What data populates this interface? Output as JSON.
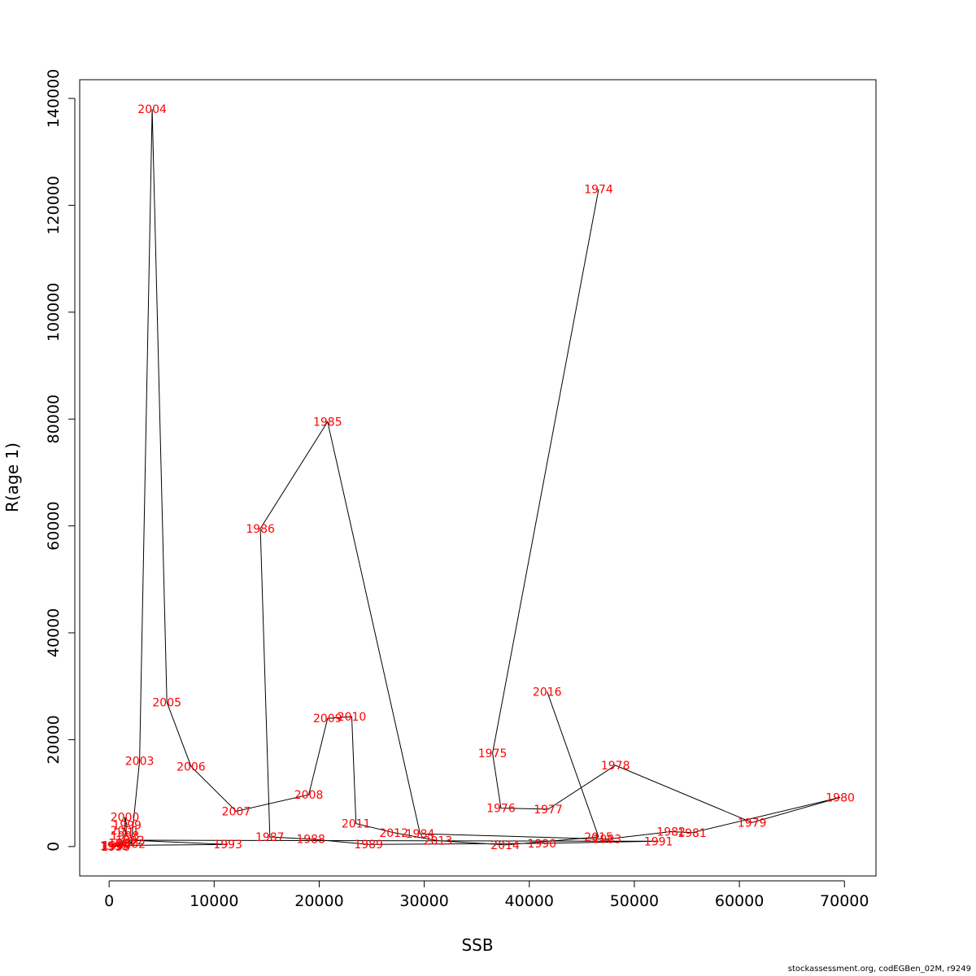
{
  "credit": "stockassessment.org, codEGBen_02M, r9249",
  "chart_data": {
    "type": "line",
    "title": "",
    "xlabel": "SSB",
    "ylabel": "R(age 1)",
    "xlim": [
      -2800,
      73000
    ],
    "ylim": [
      -5500,
      143500
    ],
    "xticks": [
      0,
      10000,
      20000,
      30000,
      40000,
      50000,
      60000,
      70000
    ],
    "yticks": [
      0,
      20000,
      40000,
      60000,
      80000,
      100000,
      120000,
      140000
    ],
    "xtick_labels": [
      "0",
      "10000",
      "20000",
      "30000",
      "40000",
      "50000",
      "60000",
      "70000"
    ],
    "ytick_labels": [
      "0",
      "20000",
      "40000",
      "60000",
      "80000",
      "100000",
      "120000",
      "140000"
    ],
    "line_color": "#000000",
    "label_color": "#ff0000",
    "grid": false,
    "points": [
      {
        "year": "1974",
        "x": 46600,
        "y": 123000
      },
      {
        "year": "1975",
        "x": 36500,
        "y": 17500
      },
      {
        "year": "1976",
        "x": 37300,
        "y": 7200
      },
      {
        "year": "1977",
        "x": 41800,
        "y": 7000
      },
      {
        "year": "1978",
        "x": 48200,
        "y": 15200
      },
      {
        "year": "1979",
        "x": 61200,
        "y": 4500
      },
      {
        "year": "1980",
        "x": 69600,
        "y": 9200
      },
      {
        "year": "1981",
        "x": 55500,
        "y": 2600
      },
      {
        "year": "1982",
        "x": 53500,
        "y": 2800
      },
      {
        "year": "1983",
        "x": 47400,
        "y": 1400
      },
      {
        "year": "1984",
        "x": 29600,
        "y": 2400
      },
      {
        "year": "1985",
        "x": 20800,
        "y": 79500
      },
      {
        "year": "1986",
        "x": 14400,
        "y": 59500
      },
      {
        "year": "1987",
        "x": 15300,
        "y": 1800
      },
      {
        "year": "1988",
        "x": 19200,
        "y": 1400
      },
      {
        "year": "1989",
        "x": 24700,
        "y": 400
      },
      {
        "year": "1990",
        "x": 41200,
        "y": 600
      },
      {
        "year": "1991",
        "x": 52300,
        "y": 1000
      },
      {
        "year": "1992",
        "x": 2000,
        "y": 1200
      },
      {
        "year": "1993",
        "x": 11300,
        "y": 400
      },
      {
        "year": "1994",
        "x": 700,
        "y": 200
      },
      {
        "year": "1995",
        "x": 500,
        "y": 100
      },
      {
        "year": "1996",
        "x": 600,
        "y": 0
      },
      {
        "year": "1997",
        "x": 1300,
        "y": 700
      },
      {
        "year": "1998",
        "x": 1500,
        "y": 2000
      },
      {
        "year": "1999",
        "x": 1700,
        "y": 4000
      },
      {
        "year": "2000",
        "x": 1500,
        "y": 5500
      },
      {
        "year": "2001",
        "x": 1500,
        "y": 3000
      },
      {
        "year": "2002",
        "x": 2100,
        "y": 500
      },
      {
        "year": "2003",
        "x": 2900,
        "y": 16000
      },
      {
        "year": "2004",
        "x": 4100,
        "y": 138000
      },
      {
        "year": "2005",
        "x": 5500,
        "y": 27000
      },
      {
        "year": "2006",
        "x": 7800,
        "y": 15000
      },
      {
        "year": "2007",
        "x": 12100,
        "y": 6600
      },
      {
        "year": "2008",
        "x": 19000,
        "y": 9700
      },
      {
        "year": "2009",
        "x": 20800,
        "y": 24000
      },
      {
        "year": "2010",
        "x": 23100,
        "y": 24300
      },
      {
        "year": "2011",
        "x": 23500,
        "y": 4300
      },
      {
        "year": "2012",
        "x": 27100,
        "y": 2600
      },
      {
        "year": "2013",
        "x": 31300,
        "y": 1100
      },
      {
        "year": "2014",
        "x": 37700,
        "y": 300
      },
      {
        "year": "2015",
        "x": 46600,
        "y": 1800
      },
      {
        "year": "2016",
        "x": 41700,
        "y": 29000
      }
    ]
  }
}
